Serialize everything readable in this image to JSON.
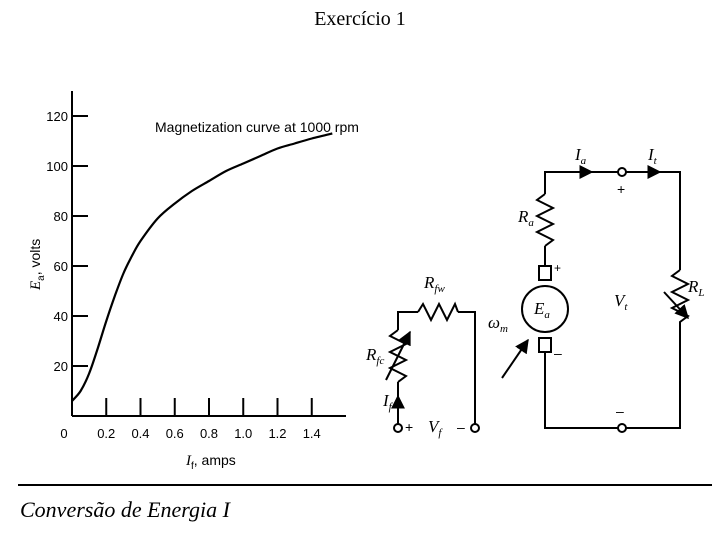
{
  "slide": {
    "title": "Exercício 1",
    "footer": "Conversão de Energia I"
  },
  "chart_data": {
    "type": "line",
    "annotation": "Magnetization curve at 1000 rpm",
    "xlabel_main": "I",
    "xlabel_sub": "f",
    "xlabel_unit": ", amps",
    "ylabel_main": "E",
    "ylabel_sub": "a",
    "ylabel_unit": ", volts",
    "xlim": [
      0,
      1.6
    ],
    "ylim": [
      0,
      130
    ],
    "x_ticks": [
      "0",
      "0.2",
      "0.4",
      "0.6",
      "0.8",
      "1.0",
      "1.2",
      "1.4"
    ],
    "y_ticks": [
      "20",
      "40",
      "60",
      "80",
      "100",
      "120"
    ],
    "x_tick_values": [
      0,
      0.2,
      0.4,
      0.6,
      0.8,
      1.0,
      1.2,
      1.4
    ],
    "y_tick_values": [
      20,
      40,
      60,
      80,
      100,
      120
    ],
    "series": [
      {
        "x": [
          0,
          0.05,
          0.1,
          0.15,
          0.2,
          0.25,
          0.3,
          0.35,
          0.4,
          0.5,
          0.6,
          0.7,
          0.8,
          0.9,
          1.0,
          1.1,
          1.2,
          1.3,
          1.4,
          1.52
        ],
        "y": [
          6,
          10,
          17,
          27,
          38,
          48,
          57,
          64,
          70,
          79,
          85,
          90,
          94,
          98,
          101,
          104,
          107,
          109,
          111,
          113
        ]
      }
    ]
  },
  "circuit": {
    "labels": {
      "Rfw": {
        "main": "R",
        "sub": "fw"
      },
      "Rfc": {
        "main": "R",
        "sub": "fc"
      },
      "If": {
        "main": "I",
        "sub": "f"
      },
      "Vf": {
        "main": "V",
        "sub": "f"
      },
      "wm": {
        "main": "ω",
        "sub": "m"
      },
      "Ia": {
        "main": "I",
        "sub": "a"
      },
      "It": {
        "main": "I",
        "sub": "t"
      },
      "Ra": {
        "main": "R",
        "sub": "a"
      },
      "Ea": {
        "main": "E",
        "sub": "a"
      },
      "Vt": {
        "main": "V",
        "sub": "t"
      },
      "RL": {
        "main": "R",
        "sub": "L"
      }
    },
    "plus": "+",
    "minus": "–"
  }
}
